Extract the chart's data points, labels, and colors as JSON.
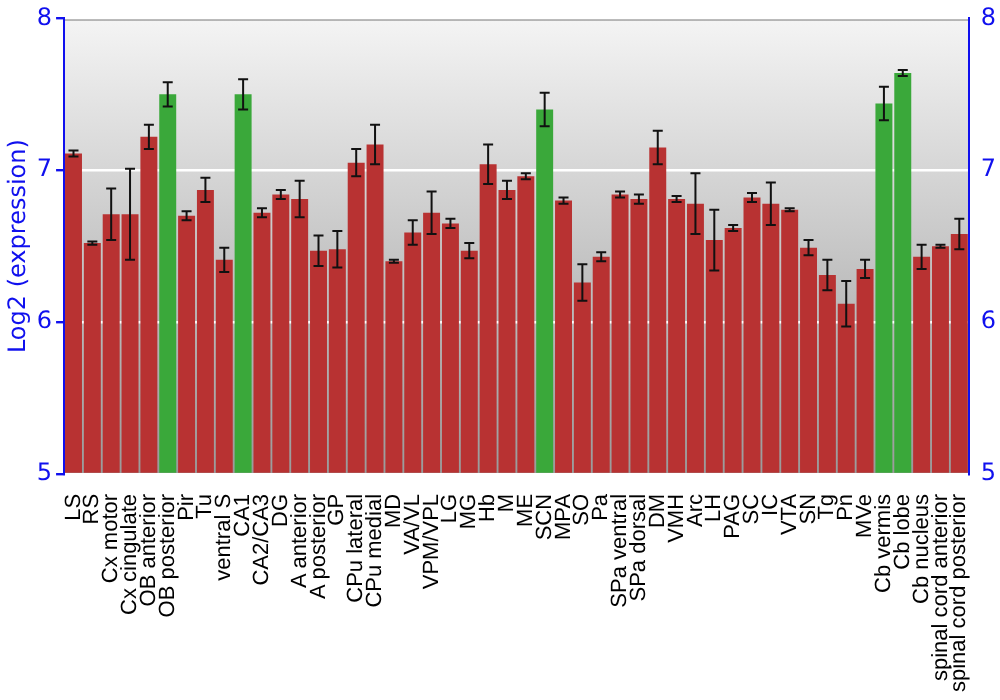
{
  "chart_data": {
    "type": "bar",
    "ylabel": "Log2 (expression)",
    "categories": [
      "LS",
      "RS",
      "Cx motor",
      "Cx cingulate",
      "OB anterior",
      "OB posterior",
      "Pir",
      "Tu",
      "ventral S",
      "CA1",
      "CA2/CA3",
      "DG",
      "A anterior",
      "A posterior",
      "GP",
      "CPu lateral",
      "CPu medial",
      "MD",
      "VA/VL",
      "VPM/VPL",
      "LG",
      "MG",
      "Hb",
      "M",
      "ME",
      "SCN",
      "MPA",
      "SO",
      "Pa",
      "SPa ventral",
      "SPa dorsal",
      "DM",
      "VMH",
      "Arc",
      "LH",
      "PAG",
      "SC",
      "IC",
      "VTA",
      "SN",
      "Tg",
      "Pn",
      "MVe",
      "Cb vermis",
      "Cb lobe",
      "Cb nucleus",
      "spinal cord anterior",
      "spinal cord posterior"
    ],
    "values": [
      7.11,
      6.52,
      6.71,
      6.71,
      7.22,
      7.5,
      6.7,
      6.87,
      6.41,
      7.5,
      6.72,
      6.84,
      6.81,
      6.47,
      6.48,
      7.05,
      7.17,
      6.4,
      6.59,
      6.72,
      6.65,
      6.47,
      7.04,
      6.87,
      6.96,
      7.4,
      6.8,
      6.26,
      6.43,
      6.84,
      6.81,
      7.15,
      6.81,
      6.78,
      6.54,
      6.62,
      6.82,
      6.78,
      6.74,
      6.49,
      6.31,
      6.12,
      6.35,
      7.44,
      7.64,
      6.43,
      6.5,
      6.58
    ],
    "errors": [
      0.02,
      0.01,
      0.17,
      0.3,
      0.08,
      0.08,
      0.03,
      0.08,
      0.08,
      0.1,
      0.03,
      0.03,
      0.12,
      0.1,
      0.12,
      0.09,
      0.13,
      0.01,
      0.08,
      0.14,
      0.03,
      0.05,
      0.13,
      0.06,
      0.02,
      0.11,
      0.02,
      0.12,
      0.03,
      0.02,
      0.03,
      0.11,
      0.02,
      0.2,
      0.2,
      0.02,
      0.03,
      0.14,
      0.01,
      0.05,
      0.1,
      0.15,
      0.06,
      0.11,
      0.02,
      0.08,
      0.01,
      0.1
    ],
    "colors": [
      "#b83232",
      "#b83232",
      "#b83232",
      "#b83232",
      "#b83232",
      "#3aa83a",
      "#b83232",
      "#b83232",
      "#b83232",
      "#3aa83a",
      "#b83232",
      "#b83232",
      "#b83232",
      "#b83232",
      "#b83232",
      "#b83232",
      "#b83232",
      "#b83232",
      "#b83232",
      "#b83232",
      "#b83232",
      "#b83232",
      "#b83232",
      "#b83232",
      "#b83232",
      "#3aa83a",
      "#b83232",
      "#b83232",
      "#b83232",
      "#b83232",
      "#b83232",
      "#b83232",
      "#b83232",
      "#b83232",
      "#b83232",
      "#b83232",
      "#b83232",
      "#b83232",
      "#b83232",
      "#b83232",
      "#b83232",
      "#b83232",
      "#b83232",
      "#3aa83a",
      "#3aa83a",
      "#b83232",
      "#b83232",
      "#b83232"
    ],
    "ylim": [
      5,
      8
    ],
    "yticks": [
      5,
      6,
      7,
      8
    ],
    "y2lim": [
      5,
      8
    ],
    "y2ticks": [
      5,
      6,
      7,
      8
    ],
    "grid": "y",
    "legend": false
  }
}
